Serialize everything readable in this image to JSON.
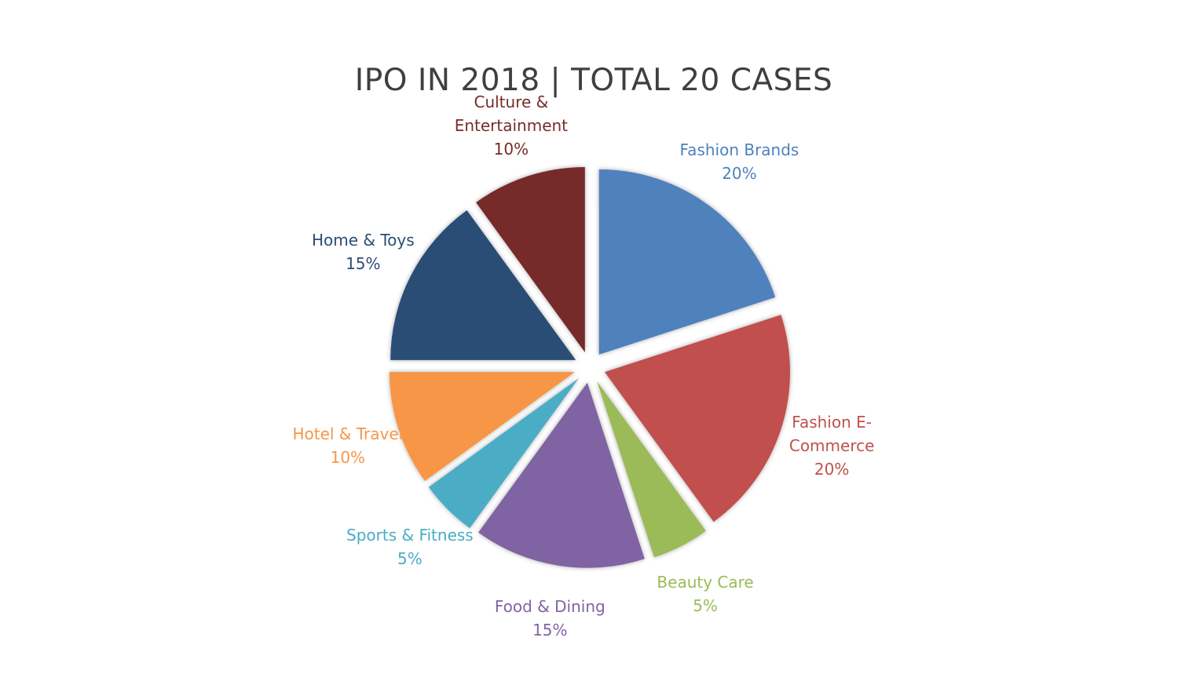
{
  "chart_data": {
    "type": "pie",
    "title": "IPO IN 2018 | TOTAL 20 CASES",
    "start_angle_deg": 0,
    "direction": "clockwise",
    "exploded": true,
    "slices": [
      {
        "name": "Fashion Brands",
        "value": 20,
        "label": "20%",
        "color": "#4f81bd",
        "name_lines": [
          "Fashion Brands"
        ]
      },
      {
        "name": "Fashion E-Commerce",
        "value": 20,
        "label": "20%",
        "color": "#c0504d",
        "name_lines": [
          "Fashion E-",
          "Commerce"
        ]
      },
      {
        "name": "Beauty Care",
        "value": 5,
        "label": "5%",
        "color": "#9bbb59",
        "name_lines": [
          "Beauty Care"
        ]
      },
      {
        "name": "Food & Dining",
        "value": 15,
        "label": "15%",
        "color": "#8064a2",
        "name_lines": [
          "Food & Dining"
        ]
      },
      {
        "name": "Sports & Fitness",
        "value": 5,
        "label": "5%",
        "color": "#4bacc6",
        "name_lines": [
          "Sports & Fitness"
        ]
      },
      {
        "name": "Hotel & Travel",
        "value": 10,
        "label": "10%",
        "color": "#f79646",
        "name_lines": [
          "Hotel & Travel"
        ]
      },
      {
        "name": "Home & Toys",
        "value": 15,
        "label": "15%",
        "color": "#2c4d75",
        "name_lines": [
          "Home & Toys"
        ]
      },
      {
        "name": "Culture & Entertainment",
        "value": 10,
        "label": "10%",
        "color": "#772c2a",
        "name_lines": [
          "Culture &",
          "Entertainment"
        ]
      }
    ]
  }
}
